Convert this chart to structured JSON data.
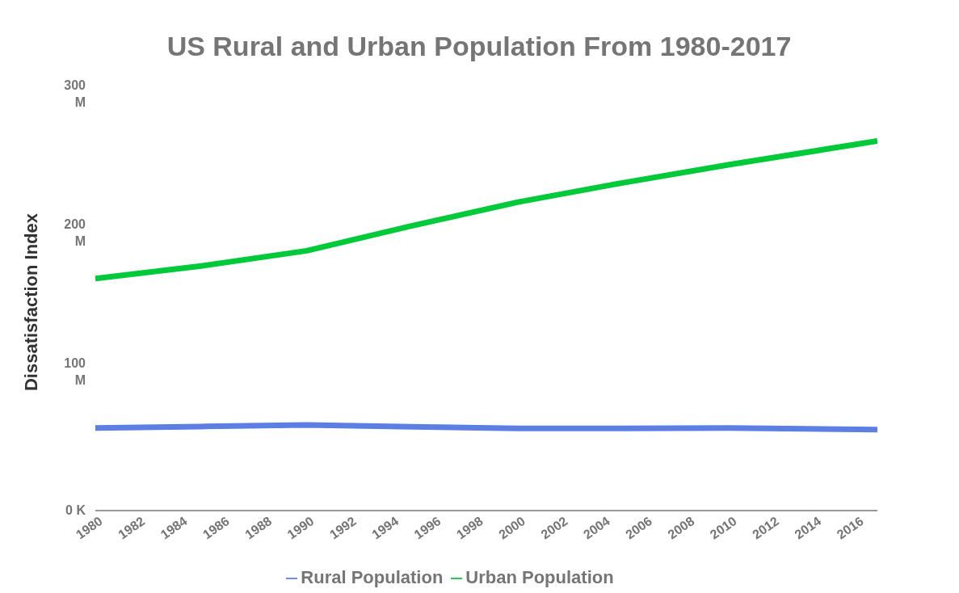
{
  "chart_data": {
    "type": "line",
    "title": "US Rural and Urban Population From 1980-2017",
    "ylabel": "Dissatisfaction Index",
    "x": [
      1980,
      1985,
      1990,
      1995,
      2000,
      2005,
      2010,
      2017
    ],
    "series": [
      {
        "name": "Rural Population",
        "color": "#5b7fe3",
        "values": [
          59.5,
          60.5,
          61.6,
          60.3,
          59.1,
          59.2,
          59.5,
          58.3
        ]
      },
      {
        "name": "Urban Population",
        "color": "#00c93a",
        "values": [
          167,
          176,
          187,
          205,
          222,
          236,
          249,
          266
        ]
      }
    ],
    "xlim": [
      1980,
      2017
    ],
    "xticks": [
      1980,
      1982,
      1984,
      1986,
      1988,
      1990,
      1992,
      1994,
      1996,
      1998,
      2000,
      2002,
      2004,
      2006,
      2008,
      2010,
      2012,
      2014,
      2016
    ],
    "ylim": [
      0,
      300
    ],
    "yticks": [
      {
        "value": 0,
        "label": "0 K"
      },
      {
        "value": 100,
        "label": "100 M"
      },
      {
        "value": 200,
        "label": "200 M"
      },
      {
        "value": 300,
        "label": "300 M"
      }
    ],
    "grid": false,
    "legend": "bottom",
    "marker": "none",
    "line_style": "solid"
  }
}
